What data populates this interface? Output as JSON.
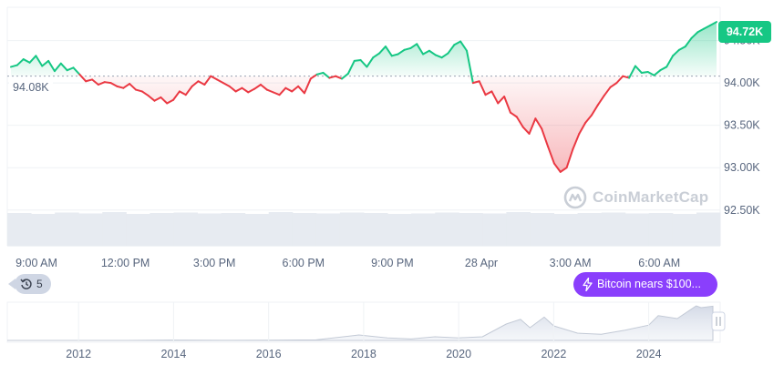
{
  "price_badge": "94.72K",
  "open_price_label": "94.08K",
  "history_count": "5",
  "news": {
    "label": "Bitcoin nears $100..."
  },
  "watermark": "CoinMarketCap",
  "colors": {
    "up": "#16c784",
    "down": "#ea3943",
    "news": "#8a3ffc",
    "badge": "#16c784"
  },
  "chart_data": [
    {
      "type": "line",
      "title": "",
      "y_axis_side": "right",
      "ylim": [
        92100,
        94850
      ],
      "y_ticks": [
        {
          "value": 92500,
          "label": "92.50K"
        },
        {
          "value": 93000,
          "label": "93.00K"
        },
        {
          "value": 93500,
          "label": "93.50K"
        },
        {
          "value": 94000,
          "label": "94.00K"
        },
        {
          "value": 94500,
          "label": "94.50K"
        }
      ],
      "x_ticks": [
        "9:00 AM",
        "12:00 PM",
        "3:00 PM",
        "6:00 PM",
        "9:00 PM",
        "28 Apr",
        "3:00 AM",
        "6:00 AM"
      ],
      "baseline": 94080,
      "grid": true,
      "legend": "none",
      "series": [
        {
          "values": [
            94190,
            94210,
            94280,
            94240,
            94320,
            94200,
            94260,
            94140,
            94230,
            94150,
            94180,
            94100,
            94020,
            94040,
            93980,
            94010,
            94000,
            93960,
            93940,
            93990,
            93920,
            93900,
            93850,
            93790,
            93830,
            93760,
            93800,
            93900,
            93860,
            93960,
            94020,
            93980,
            94080,
            94040,
            94000,
            93960,
            93900,
            93940,
            93890,
            93930,
            93980,
            93920,
            93890,
            93860,
            93940,
            93900,
            93960,
            93880,
            94050,
            94100,
            94120,
            94060,
            94080,
            94050,
            94110,
            94260,
            94270,
            94190,
            94300,
            94350,
            94430,
            94320,
            94340,
            94390,
            94410,
            94460,
            94340,
            94380,
            94330,
            94300,
            94350,
            94450,
            94490,
            94380,
            94000,
            94020,
            93860,
            93900,
            93760,
            93840,
            93650,
            93600,
            93480,
            93400,
            93580,
            93460,
            93250,
            93050,
            92950,
            93000,
            93220,
            93400,
            93530,
            93620,
            93740,
            93850,
            93950,
            94000,
            94080,
            94060,
            94200,
            94120,
            94130,
            94090,
            94150,
            94190,
            94320,
            94390,
            94430,
            94530,
            94600,
            94640,
            94680,
            94720
          ]
        }
      ],
      "volume": {
        "values": [
          72,
          70,
          73,
          71,
          74,
          70,
          72,
          73,
          71,
          72,
          70,
          74,
          72,
          71,
          73,
          72,
          70,
          71,
          73,
          72,
          71,
          74,
          72,
          70,
          72,
          73,
          71,
          72,
          70,
          73
        ]
      }
    },
    {
      "type": "area",
      "x_ticks": [
        "2012",
        "2014",
        "2016",
        "2018",
        "2020",
        "2022",
        "2024"
      ],
      "xlim": [
        2010.5,
        2025.35
      ],
      "series": [
        {
          "x": [
            2010.5,
            2011,
            2012,
            2013,
            2013.9,
            2014.5,
            2015,
            2016,
            2017,
            2017.9,
            2018.5,
            2019,
            2019.5,
            2020,
            2020.5,
            2021,
            2021.3,
            2021.5,
            2021.8,
            2022,
            2022.5,
            2023,
            2023.5,
            2024,
            2024.2,
            2024.6,
            2025,
            2025.1,
            2025.35
          ],
          "y": [
            0,
            0,
            0,
            0,
            1,
            0.5,
            0.3,
            0.5,
            1.5,
            15,
            7,
            4,
            10,
            7,
            10,
            45,
            58,
            35,
            64,
            40,
            20,
            17,
            28,
            42,
            68,
            60,
            95,
            90,
            94
          ]
        }
      ]
    }
  ]
}
